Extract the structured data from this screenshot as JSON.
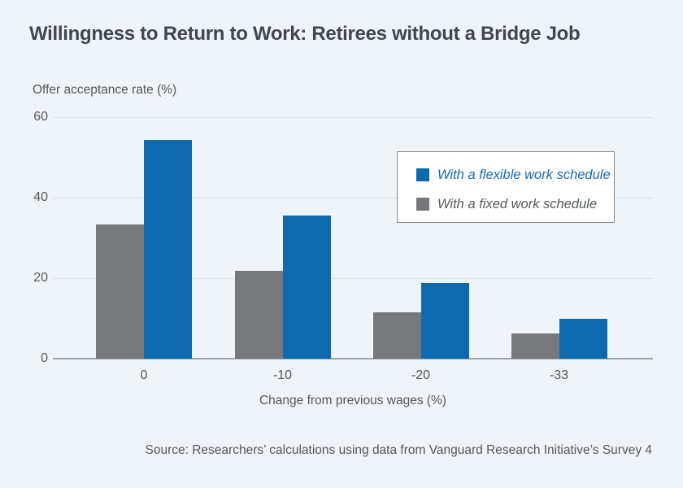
{
  "theme": {
    "background": "#eff4f9",
    "title_color": "#41474c",
    "text_color": "#54585b",
    "gridline_color": "#dde3e8",
    "axis_color": "#9fa4a8",
    "legend_border_color": "#85888b",
    "legend_background": "#ffffff",
    "flexible_blue": "#0e69ae",
    "fixed_gray": "#77787b",
    "legend_flexible_text_color": "#1a6aad",
    "legend_fixed_text_color": "#54585b"
  },
  "source": {
    "text": "Source: Researchers’ calculations using data from Vanguard Research Initiative’s Survey 4"
  },
  "chart_data": {
    "type": "bar",
    "title": "Willingness to Return to Work: Retirees without a Bridge Job",
    "categories": [
      "0",
      "-10",
      "-20",
      "-33"
    ],
    "series": [
      {
        "name": "With a flexible work schedule",
        "color": "#0e69ae",
        "text_color": "#1a6aad",
        "values": [
          54.3,
          35.5,
          18.7,
          9.9
        ]
      },
      {
        "name": "With a fixed work schedule",
        "color": "#77787b",
        "text_color": "#54585b",
        "values": [
          33.3,
          21.8,
          11.4,
          6.2
        ]
      }
    ],
    "bar_order_left_to_right": [
      "With a fixed work schedule",
      "With a flexible work schedule"
    ],
    "xlabel": "Change from previous wages (%)",
    "ylabel": "Offer acceptance rate (%)",
    "ylim": [
      0,
      60
    ],
    "yticks": [
      0,
      20,
      40,
      60
    ],
    "grid": "horizontal",
    "legend_position": "upper right"
  }
}
